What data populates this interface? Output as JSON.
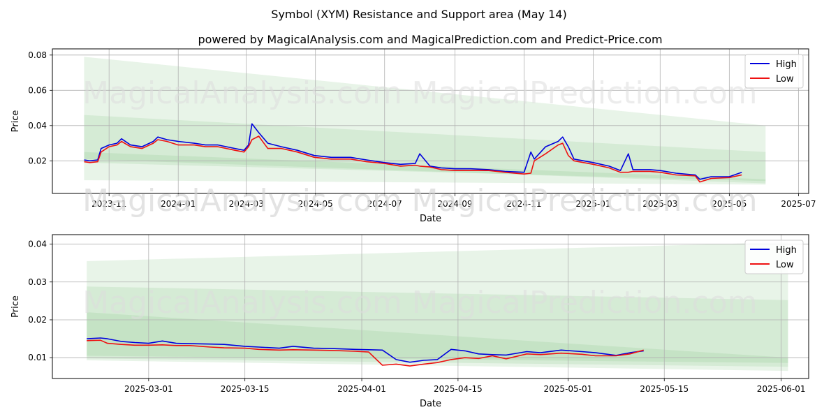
{
  "title": "Symbol (XYM) Resistance and Support area (May 14)",
  "subtitle": "powered by MagicalAnalysis.com and MagicalPrediction.com and Predict-Price.com",
  "watermarks": [
    "MagicalAnalysis.com",
    "MagicalPrediction.com"
  ],
  "colors": {
    "high": "#0000dd",
    "low": "#ee1111",
    "band": "#7ec07e"
  },
  "chart_data": [
    {
      "type": "line",
      "xlabel": "Date",
      "ylabel": "Price",
      "xlim": [
        "2023-09-12",
        "2025-07-10"
      ],
      "ylim": [
        0.0015,
        0.0835
      ],
      "xticks": [
        "2023-11",
        "2024-01",
        "2024-03",
        "2024-05",
        "2024-07",
        "2024-09",
        "2024-11",
        "2025-01",
        "2025-03",
        "2025-05",
        "2025-07"
      ],
      "xtick_dates": [
        "2023-11-01",
        "2024-01-01",
        "2024-03-01",
        "2024-05-01",
        "2024-07-01",
        "2024-09-01",
        "2024-11-01",
        "2025-01-01",
        "2025-03-01",
        "2025-05-01",
        "2025-07-01"
      ],
      "yticks": [
        "0.02",
        "0.04",
        "0.06",
        "0.08"
      ],
      "ytick_values": [
        0.02,
        0.04,
        0.06,
        0.08
      ],
      "legend": {
        "position": "top-right",
        "entries": [
          "High",
          "Low"
        ]
      },
      "bands": [
        {
          "x": [
            "2023-10-10",
            "2025-06-02"
          ],
          "upper": [
            0.079,
            0.04
          ],
          "lower": [
            0.009,
            0.0065
          ]
        },
        {
          "x": [
            "2023-10-10",
            "2025-06-02"
          ],
          "upper": [
            0.046,
            0.025
          ],
          "lower": [
            0.019,
            0.0085
          ]
        },
        {
          "x": [
            "2023-10-10",
            "2025-06-02"
          ],
          "upper": [
            0.025,
            0.0095
          ],
          "lower": [
            0.021,
            0.0072
          ]
        }
      ],
      "series": [
        {
          "name": "High",
          "x": [
            "2023-10-10",
            "2023-10-15",
            "2023-10-22",
            "2023-10-25",
            "2023-11-01",
            "2023-11-08",
            "2023-11-12",
            "2023-11-20",
            "2023-11-30",
            "2023-12-10",
            "2023-12-14",
            "2023-12-22",
            "2024-01-01",
            "2024-01-15",
            "2024-01-25",
            "2024-02-05",
            "2024-02-20",
            "2024-02-28",
            "2024-03-03",
            "2024-03-06",
            "2024-03-12",
            "2024-03-20",
            "2024-04-01",
            "2024-04-15",
            "2024-04-30",
            "2024-05-15",
            "2024-06-01",
            "2024-06-15",
            "2024-07-01",
            "2024-07-15",
            "2024-07-28",
            "2024-08-01",
            "2024-08-10",
            "2024-08-20",
            "2024-09-01",
            "2024-09-15",
            "2024-10-01",
            "2024-10-15",
            "2024-11-01",
            "2024-11-07",
            "2024-11-10",
            "2024-11-20",
            "2024-12-01",
            "2024-12-05",
            "2024-12-10",
            "2024-12-15",
            "2025-01-01",
            "2025-01-15",
            "2025-01-25",
            "2025-02-01",
            "2025-02-05",
            "2025-02-20",
            "2025-03-01",
            "2025-03-15",
            "2025-04-01",
            "2025-04-05",
            "2025-04-15",
            "2025-05-01",
            "2025-05-12"
          ],
          "y": [
            0.0205,
            0.02,
            0.0205,
            0.027,
            0.029,
            0.03,
            0.0325,
            0.029,
            0.028,
            0.031,
            0.0335,
            0.032,
            0.031,
            0.03,
            0.029,
            0.029,
            0.027,
            0.026,
            0.029,
            0.041,
            0.036,
            0.03,
            0.028,
            0.026,
            0.023,
            0.022,
            0.022,
            0.0205,
            0.019,
            0.018,
            0.0185,
            0.024,
            0.017,
            0.016,
            0.0155,
            0.0155,
            0.015,
            0.014,
            0.0135,
            0.025,
            0.021,
            0.028,
            0.031,
            0.0335,
            0.028,
            0.021,
            0.019,
            0.017,
            0.0145,
            0.024,
            0.015,
            0.015,
            0.0145,
            0.013,
            0.012,
            0.0095,
            0.011,
            0.011,
            0.0135
          ]
        },
        {
          "name": "Low",
          "x": [
            "2023-10-10",
            "2023-10-15",
            "2023-10-22",
            "2023-10-25",
            "2023-11-01",
            "2023-11-08",
            "2023-11-12",
            "2023-11-20",
            "2023-11-30",
            "2023-12-10",
            "2023-12-14",
            "2023-12-22",
            "2024-01-01",
            "2024-01-15",
            "2024-01-25",
            "2024-02-05",
            "2024-02-20",
            "2024-02-28",
            "2024-03-03",
            "2024-03-06",
            "2024-03-12",
            "2024-03-20",
            "2024-04-01",
            "2024-04-15",
            "2024-04-30",
            "2024-05-15",
            "2024-06-01",
            "2024-06-15",
            "2024-07-01",
            "2024-07-15",
            "2024-07-28",
            "2024-08-01",
            "2024-08-10",
            "2024-08-20",
            "2024-09-01",
            "2024-09-15",
            "2024-10-01",
            "2024-10-15",
            "2024-11-01",
            "2024-11-07",
            "2024-11-10",
            "2024-11-20",
            "2024-12-01",
            "2024-12-05",
            "2024-12-10",
            "2024-12-15",
            "2025-01-01",
            "2025-01-15",
            "2025-01-25",
            "2025-02-01",
            "2025-02-05",
            "2025-02-20",
            "2025-03-01",
            "2025-03-15",
            "2025-04-01",
            "2025-04-05",
            "2025-04-15",
            "2025-05-01",
            "2025-05-12"
          ],
          "y": [
            0.0195,
            0.019,
            0.0195,
            0.025,
            0.028,
            0.029,
            0.031,
            0.028,
            0.027,
            0.03,
            0.032,
            0.031,
            0.029,
            0.029,
            0.028,
            0.028,
            0.026,
            0.025,
            0.028,
            0.032,
            0.034,
            0.027,
            0.027,
            0.025,
            0.022,
            0.021,
            0.021,
            0.0195,
            0.0185,
            0.017,
            0.0175,
            0.017,
            0.0165,
            0.015,
            0.0145,
            0.0145,
            0.0145,
            0.0135,
            0.0125,
            0.013,
            0.02,
            0.024,
            0.029,
            0.03,
            0.023,
            0.02,
            0.018,
            0.016,
            0.0135,
            0.0135,
            0.014,
            0.014,
            0.0135,
            0.012,
            0.0115,
            0.008,
            0.01,
            0.0105,
            0.012
          ]
        }
      ]
    },
    {
      "type": "line",
      "xlabel": "Date",
      "ylabel": "Price",
      "xlim": [
        "2025-02-15",
        "2025-06-05"
      ],
      "ylim": [
        0.0045,
        0.0425
      ],
      "xticks": [
        "2025-03-01",
        "2025-03-15",
        "2025-04-01",
        "2025-04-15",
        "2025-05-01",
        "2025-05-15",
        "2025-06-01"
      ],
      "xtick_dates": [
        "2025-03-01",
        "2025-03-15",
        "2025-04-01",
        "2025-04-15",
        "2025-05-01",
        "2025-05-15",
        "2025-06-01"
      ],
      "yticks": [
        "0.01",
        "0.02",
        "0.03",
        "0.04"
      ],
      "ytick_values": [
        0.01,
        0.02,
        0.03,
        0.04
      ],
      "legend": {
        "position": "top-right",
        "entries": [
          "High",
          "Low"
        ]
      },
      "bands": [
        {
          "x": [
            "2025-02-20",
            "2025-06-02"
          ],
          "upper": [
            0.0355,
            0.0405
          ],
          "lower": [
            0.0093,
            0.0065
          ]
        },
        {
          "x": [
            "2025-02-20",
            "2025-06-02"
          ],
          "upper": [
            0.0288,
            0.0252
          ],
          "lower": [
            0.0098,
            0.0076
          ]
        },
        {
          "x": [
            "2025-02-20",
            "2025-06-02"
          ],
          "upper": [
            0.022,
            0.01
          ],
          "lower": [
            0.0105,
            0.0086
          ]
        }
      ],
      "series": [
        {
          "name": "High",
          "x": [
            "2025-02-20",
            "2025-02-22",
            "2025-02-23",
            "2025-02-25",
            "2025-02-27",
            "2025-03-01",
            "2025-03-03",
            "2025-03-05",
            "2025-03-07",
            "2025-03-10",
            "2025-03-12",
            "2025-03-15",
            "2025-03-17",
            "2025-03-20",
            "2025-03-22",
            "2025-03-25",
            "2025-03-28",
            "2025-03-31",
            "2025-04-02",
            "2025-04-04",
            "2025-04-06",
            "2025-04-08",
            "2025-04-10",
            "2025-04-12",
            "2025-04-14",
            "2025-04-16",
            "2025-04-18",
            "2025-04-20",
            "2025-04-22",
            "2025-04-25",
            "2025-04-27",
            "2025-04-30",
            "2025-05-03",
            "2025-05-05",
            "2025-05-08",
            "2025-05-10",
            "2025-05-12"
          ],
          "y": [
            0.015,
            0.0152,
            0.015,
            0.0143,
            0.014,
            0.0138,
            0.0144,
            0.0138,
            0.0137,
            0.0136,
            0.0135,
            0.013,
            0.0128,
            0.0125,
            0.013,
            0.0125,
            0.0124,
            0.0122,
            0.0121,
            0.012,
            0.0095,
            0.0088,
            0.0093,
            0.0095,
            0.0122,
            0.0118,
            0.011,
            0.0108,
            0.0107,
            0.0116,
            0.0113,
            0.012,
            0.0116,
            0.0113,
            0.0106,
            0.0113,
            0.0118
          ]
        },
        {
          "name": "Low",
          "x": [
            "2025-02-20",
            "2025-02-22",
            "2025-02-23",
            "2025-02-25",
            "2025-02-27",
            "2025-03-01",
            "2025-03-03",
            "2025-03-05",
            "2025-03-07",
            "2025-03-10",
            "2025-03-12",
            "2025-03-15",
            "2025-03-17",
            "2025-03-20",
            "2025-03-22",
            "2025-03-25",
            "2025-03-28",
            "2025-03-31",
            "2025-04-02",
            "2025-04-04",
            "2025-04-06",
            "2025-04-08",
            "2025-04-10",
            "2025-04-12",
            "2025-04-14",
            "2025-04-16",
            "2025-04-18",
            "2025-04-20",
            "2025-04-22",
            "2025-04-25",
            "2025-04-27",
            "2025-04-30",
            "2025-05-03",
            "2025-05-05",
            "2025-05-08",
            "2025-05-10",
            "2025-05-12"
          ],
          "y": [
            0.0145,
            0.0146,
            0.0138,
            0.0135,
            0.0133,
            0.0133,
            0.0134,
            0.0132,
            0.0132,
            0.0128,
            0.0126,
            0.0125,
            0.0122,
            0.012,
            0.0121,
            0.012,
            0.0119,
            0.0117,
            0.0115,
            0.008,
            0.0083,
            0.0078,
            0.0083,
            0.0087,
            0.0095,
            0.01,
            0.0098,
            0.0105,
            0.0097,
            0.011,
            0.0108,
            0.0112,
            0.0109,
            0.0105,
            0.0105,
            0.011,
            0.012
          ]
        }
      ]
    }
  ]
}
